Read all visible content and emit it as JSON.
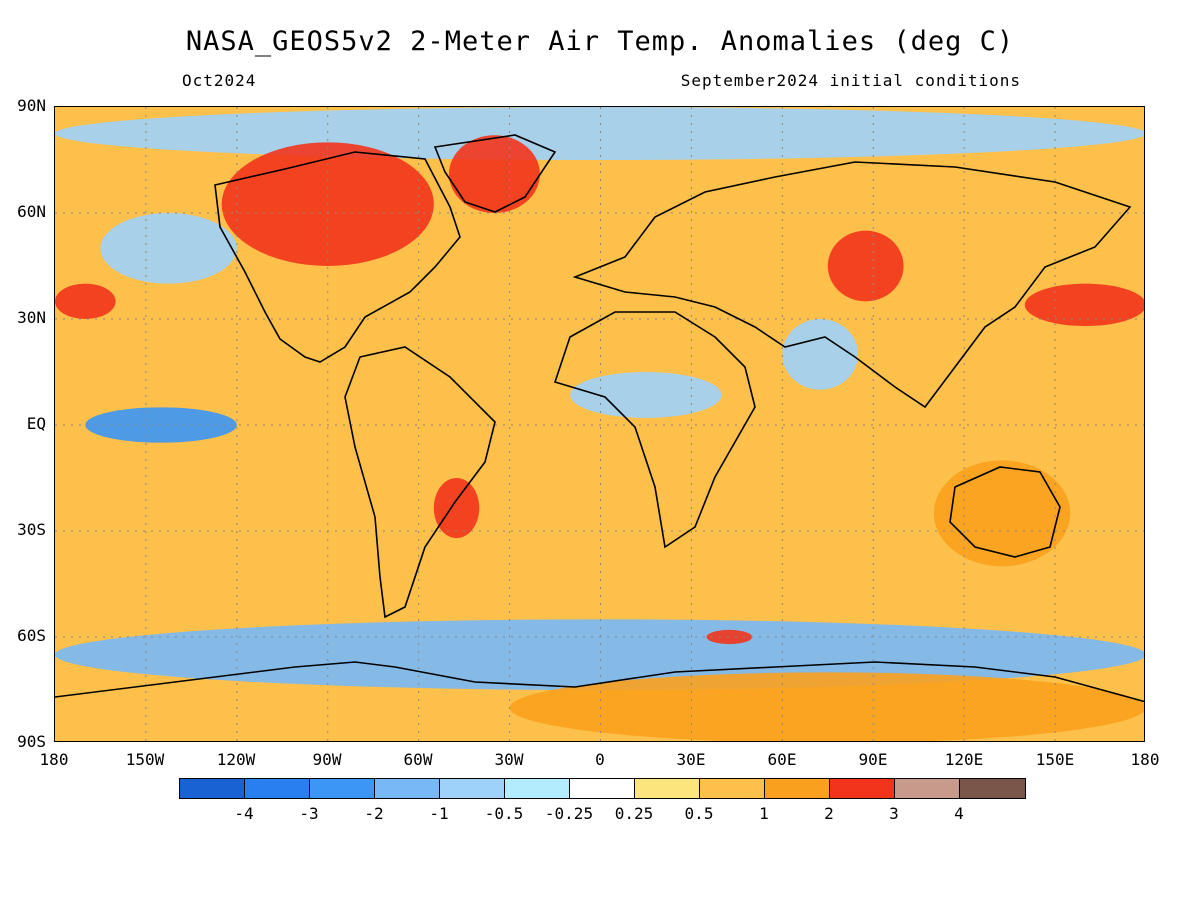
{
  "header": {
    "title": "NASA_GEOS5v2 2-Meter Air Temp. Anomalies (deg C)",
    "left_subtitle": "Oct2024",
    "right_subtitle": "September2024 initial conditions"
  },
  "chart_data": {
    "type": "heatmap",
    "title": "NASA_GEOS5v2 2-Meter Air Temp. Anomalies (deg C)",
    "units": "deg C",
    "y_ticks": [
      "90N",
      "60N",
      "30N",
      "EQ",
      "30S",
      "60S",
      "90S"
    ],
    "x_ticks": [
      "180",
      "150W",
      "120W",
      "90W",
      "60W",
      "30W",
      "0",
      "30E",
      "60E",
      "90E",
      "120E",
      "150E",
      "180"
    ],
    "lon_range": [
      -180,
      180
    ],
    "lat_range": [
      -90,
      90
    ],
    "colorbar": {
      "colors": [
        "#1862d3",
        "#2a7ff0",
        "#3b96f5",
        "#78b8f7",
        "#9ed2fb",
        "#b3ecfc",
        "#ffffff",
        "#fde57e",
        "#fdc04a",
        "#f9a11e",
        "#f2341c",
        "#c89a8c",
        "#79554a"
      ],
      "labels": [
        "-4",
        "-3",
        "-2",
        "-1",
        "-0.5",
        "-0.25",
        "0.25",
        "0.5",
        "1",
        "2",
        "3",
        "4"
      ]
    },
    "regions": [
      {
        "lon": [
          -180,
          180
        ],
        "lat": [
          75,
          90
        ],
        "class": 4
      },
      {
        "lon": [
          -125,
          -55
        ],
        "lat": [
          45,
          80
        ],
        "class": 10
      },
      {
        "lon": [
          -50,
          -20
        ],
        "lat": [
          60,
          82
        ],
        "class": 10
      },
      {
        "lon": [
          75,
          100
        ],
        "lat": [
          35,
          55
        ],
        "class": 10
      },
      {
        "lon": [
          140,
          180
        ],
        "lat": [
          28,
          40
        ],
        "class": 10
      },
      {
        "lon": [
          -180,
          -160
        ],
        "lat": [
          30,
          40
        ],
        "class": 10
      },
      {
        "lon": [
          -165,
          -120
        ],
        "lat": [
          40,
          60
        ],
        "class": 4
      },
      {
        "lon": [
          -170,
          -120
        ],
        "lat": [
          -5,
          5
        ],
        "class": 2
      },
      {
        "lon": [
          -10,
          40
        ],
        "lat": [
          2,
          15
        ],
        "class": 4
      },
      {
        "lon": [
          -55,
          -40
        ],
        "lat": [
          -32,
          -15
        ],
        "class": 10
      },
      {
        "lon": [
          -180,
          180
        ],
        "lat": [
          -75,
          -55
        ],
        "class": 3
      },
      {
        "lon": [
          -30,
          180
        ],
        "lat": [
          -90,
          -70
        ],
        "class": 9
      },
      {
        "lon": [
          110,
          155
        ],
        "lat": [
          -40,
          -10
        ],
        "class": 9
      },
      {
        "lon": [
          60,
          85
        ],
        "lat": [
          10,
          30
        ],
        "class": 4
      },
      {
        "lon": [
          35,
          50
        ],
        "lat": [
          -62,
          -58
        ],
        "class": 10
      }
    ]
  }
}
